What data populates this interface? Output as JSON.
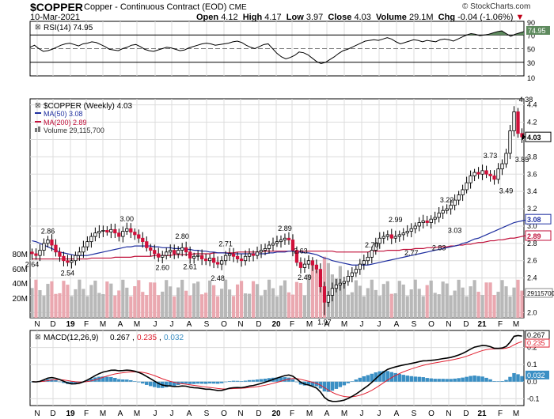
{
  "header": {
    "symbol": "$COPPER",
    "description": "Copper - Continuous Contract (EOD)",
    "exchange": "CME",
    "date": "10-Mar-2021",
    "open_label": "Open",
    "open": "4.12",
    "high_label": "High",
    "high": "4.17",
    "low_label": "Low",
    "low": "3.97",
    "close_label": "Close",
    "close": "4.03",
    "volume_label": "Volume",
    "volume": "29.1M",
    "chg_label": "Chg",
    "chg": "-0.04 (-1.06%)",
    "copyright": "© StockCharts.com"
  },
  "colors": {
    "up": "#ffffff",
    "down": "#d0103a",
    "rsi_fill": "#5e8a5e",
    "ma50": "#1f2fa0",
    "ma200": "#c0103a",
    "vol_up": "#b8b8b8",
    "vol_down": "#eaa8b0",
    "macd_hist": "#3a8fc4",
    "signal": "#e02030",
    "grid": "#dcdcdc"
  },
  "chart_data": [
    {
      "type": "line",
      "title": "RSI(14) 74.95",
      "legend": "RSI(14) 74.95",
      "ylim": [
        10,
        90
      ],
      "ticks": [
        "70",
        "50",
        "30"
      ],
      "last_value": "74.95",
      "values": [
        52,
        55,
        50,
        46,
        47,
        49,
        52,
        55,
        57,
        58,
        56,
        54,
        57,
        58,
        60,
        59,
        56,
        53,
        49,
        48,
        47,
        50,
        52,
        55,
        56,
        53,
        49,
        47,
        46,
        48,
        50,
        52,
        51,
        49,
        47,
        48,
        51,
        53,
        55,
        57,
        58,
        57,
        55,
        56,
        57,
        58,
        60,
        61,
        59,
        55,
        52,
        50,
        53,
        56,
        57,
        50,
        43,
        38,
        35,
        37,
        40,
        45,
        44,
        41,
        36,
        31,
        28,
        30,
        34,
        38,
        43,
        47,
        49,
        52,
        55,
        58,
        61,
        62,
        63,
        62,
        64,
        66,
        64,
        60,
        57,
        59,
        61,
        63,
        62,
        60,
        62,
        61,
        60,
        63,
        64,
        63,
        61,
        64,
        67,
        70,
        72,
        71,
        69,
        70,
        71,
        73,
        75,
        76,
        72,
        68,
        71,
        73,
        75
      ]
    },
    {
      "type": "candlestick",
      "title": "$COPPER (Weekly) 4.03",
      "legend": [
        "$COPPER (Weekly) 4.03",
        "MA(50) 3.08",
        "MA(200) 2.89",
        "Volume 29,115,700"
      ],
      "ylim": [
        1.94,
        4.47
      ],
      "y_ticks": [
        "4.4",
        "4.2",
        "4.0",
        "3.8",
        "3.6",
        "3.4",
        "3.2",
        "3.0",
        "2.8",
        "2.6",
        "2.4",
        "2.2",
        "2.0"
      ],
      "volume_ticks": [
        "80M",
        "60M",
        "40M",
        "20M"
      ],
      "last_labels": [
        "4.03",
        "3.08",
        "2.89",
        "29115700"
      ],
      "annotations": [
        {
          "text": "2.64",
          "week": 0,
          "value": 2.64,
          "pos": "below"
        },
        {
          "text": "2.86",
          "week": 4,
          "value": 2.86,
          "pos": "above"
        },
        {
          "text": "2.54",
          "week": 9,
          "value": 2.54,
          "pos": "below"
        },
        {
          "text": "3.00",
          "week": 24,
          "value": 3.0,
          "pos": "above"
        },
        {
          "text": "2.80",
          "week": 38,
          "value": 2.8,
          "pos": "above"
        },
        {
          "text": "2.60",
          "week": 33,
          "value": 2.6,
          "pos": "below"
        },
        {
          "text": "2.61",
          "week": 40,
          "value": 2.61,
          "pos": "below"
        },
        {
          "text": "2.71",
          "week": 49,
          "value": 2.71,
          "pos": "above"
        },
        {
          "text": "2.48",
          "week": 47,
          "value": 2.48,
          "pos": "below"
        },
        {
          "text": "2.89",
          "week": 64,
          "value": 2.89,
          "pos": "above"
        },
        {
          "text": "2.63",
          "week": 68,
          "value": 2.63,
          "pos": "above"
        },
        {
          "text": "2.49",
          "week": 69,
          "value": 2.49,
          "pos": "below"
        },
        {
          "text": "1.97",
          "week": 74,
          "value": 1.97,
          "pos": "below"
        },
        {
          "text": "2.70",
          "week": 86,
          "value": 2.7,
          "pos": "above"
        },
        {
          "text": "2.99",
          "week": 92,
          "value": 2.99,
          "pos": "above"
        },
        {
          "text": "2.77",
          "week": 96,
          "value": 2.77,
          "pos": "below"
        },
        {
          "text": "2.83",
          "week": 103,
          "value": 2.83,
          "pos": "below"
        },
        {
          "text": "3.22",
          "week": 105,
          "value": 3.22,
          "pos": "above"
        },
        {
          "text": "3.03",
          "week": 107,
          "value": 3.03,
          "pos": "below"
        },
        {
          "text": "3.73",
          "week": 116,
          "value": 3.73,
          "pos": "above"
        },
        {
          "text": "3.49",
          "week": 120,
          "value": 3.49,
          "pos": "below"
        },
        {
          "text": "3.85",
          "week": 124,
          "value": 3.85,
          "pos": "below"
        },
        {
          "text": "4.38",
          "week": 125,
          "value": 4.38,
          "pos": "above"
        }
      ],
      "closes": [
        2.68,
        2.66,
        2.72,
        2.8,
        2.84,
        2.78,
        2.7,
        2.65,
        2.6,
        2.58,
        2.6,
        2.66,
        2.7,
        2.76,
        2.82,
        2.88,
        2.92,
        2.94,
        2.95,
        2.93,
        2.96,
        2.92,
        2.88,
        2.94,
        2.97,
        2.93,
        2.9,
        2.86,
        2.82,
        2.75,
        2.72,
        2.68,
        2.64,
        2.66,
        2.7,
        2.72,
        2.68,
        2.72,
        2.75,
        2.7,
        2.63,
        2.65,
        2.66,
        2.62,
        2.6,
        2.63,
        2.58,
        2.56,
        2.6,
        2.66,
        2.68,
        2.65,
        2.62,
        2.6,
        2.65,
        2.68,
        2.66,
        2.7,
        2.72,
        2.74,
        2.78,
        2.8,
        2.82,
        2.84,
        2.86,
        2.84,
        2.72,
        2.58,
        2.52,
        2.56,
        2.6,
        2.55,
        2.5,
        2.3,
        2.12,
        2.2,
        2.28,
        2.32,
        2.34,
        2.36,
        2.42,
        2.46,
        2.5,
        2.56,
        2.6,
        2.64,
        2.72,
        2.8,
        2.86,
        2.88,
        2.9,
        2.86,
        2.88,
        2.9,
        2.92,
        2.94,
        2.97,
        3.0,
        3.04,
        3.06,
        3.04,
        3.08,
        3.1,
        3.15,
        3.18,
        3.2,
        3.24,
        3.3,
        3.36,
        3.42,
        3.5,
        3.58,
        3.62,
        3.6,
        3.64,
        3.6,
        3.58,
        3.54,
        3.66,
        3.72,
        3.84,
        4.1,
        4.32,
        4.07,
        4.03
      ],
      "ma50": [
        2.83,
        2.82,
        2.8,
        2.78,
        2.76,
        2.74,
        2.72,
        2.7,
        2.69,
        2.68,
        2.67,
        2.66,
        2.66,
        2.66,
        2.66,
        2.67,
        2.68,
        2.69,
        2.7,
        2.71,
        2.72,
        2.73,
        2.74,
        2.75,
        2.76,
        2.76,
        2.77,
        2.77,
        2.77,
        2.77,
        2.77,
        2.76,
        2.76,
        2.75,
        2.75,
        2.75,
        2.74,
        2.74,
        2.74,
        2.73,
        2.73,
        2.72,
        2.72,
        2.71,
        2.71,
        2.7,
        2.7,
        2.69,
        2.69,
        2.69,
        2.68,
        2.68,
        2.68,
        2.68,
        2.68,
        2.68,
        2.68,
        2.68,
        2.68,
        2.68,
        2.69,
        2.69,
        2.7,
        2.7,
        2.7,
        2.71,
        2.71,
        2.7,
        2.7,
        2.69,
        2.69,
        2.68,
        2.67,
        2.65,
        2.63,
        2.62,
        2.6,
        2.59,
        2.58,
        2.57,
        2.56,
        2.55,
        2.55,
        2.55,
        2.55,
        2.55,
        2.56,
        2.57,
        2.58,
        2.59,
        2.6,
        2.61,
        2.62,
        2.63,
        2.64,
        2.65,
        2.66,
        2.67,
        2.68,
        2.69,
        2.7,
        2.71,
        2.72,
        2.73,
        2.74,
        2.75,
        2.76,
        2.77,
        2.78,
        2.8,
        2.81,
        2.83,
        2.85,
        2.86,
        2.88,
        2.9,
        2.92,
        2.94,
        2.96,
        2.98,
        3.0,
        3.02,
        3.04,
        3.05,
        3.06,
        3.07,
        3.08
      ],
      "ma200": [
        2.62,
        2.62,
        2.62,
        2.62,
        2.62,
        2.62,
        2.62,
        2.62,
        2.62,
        2.62,
        2.62,
        2.62,
        2.62,
        2.62,
        2.62,
        2.63,
        2.63,
        2.63,
        2.63,
        2.63,
        2.63,
        2.64,
        2.64,
        2.64,
        2.64,
        2.64,
        2.65,
        2.65,
        2.65,
        2.65,
        2.65,
        2.66,
        2.66,
        2.66,
        2.66,
        2.66,
        2.67,
        2.67,
        2.67,
        2.67,
        2.67,
        2.68,
        2.68,
        2.68,
        2.68,
        2.68,
        2.69,
        2.69,
        2.69,
        2.69,
        2.69,
        2.69,
        2.7,
        2.7,
        2.7,
        2.7,
        2.7,
        2.7,
        2.7,
        2.71,
        2.71,
        2.71,
        2.71,
        2.71,
        2.71,
        2.71,
        2.71,
        2.71,
        2.71,
        2.71,
        2.71,
        2.71,
        2.71,
        2.71,
        2.71,
        2.71,
        2.71,
        2.7,
        2.7,
        2.7,
        2.7,
        2.7,
        2.7,
        2.7,
        2.7,
        2.7,
        2.71,
        2.71,
        2.71,
        2.71,
        2.72,
        2.72,
        2.72,
        2.72,
        2.73,
        2.73,
        2.73,
        2.74,
        2.74,
        2.74,
        2.75,
        2.75,
        2.75,
        2.76,
        2.76,
        2.76,
        2.77,
        2.77,
        2.78,
        2.78,
        2.79,
        2.79,
        2.8,
        2.81,
        2.81,
        2.82,
        2.83,
        2.83,
        2.84,
        2.84,
        2.85,
        2.86,
        2.86,
        2.87,
        2.88,
        2.89
      ]
    },
    {
      "type": "line",
      "title": "MACD(12,26,9) 0.267, 0.235, 0.032",
      "legend": [
        "MACD(12,26,9)",
        "0.267",
        ",",
        "0.235",
        ",",
        "0.032"
      ],
      "ylim": [
        -0.14,
        0.3
      ],
      "ticks": [
        "0.2",
        "0.1",
        "0.0",
        "-0.1"
      ],
      "last_labels": [
        "0.267",
        "0.235",
        "0.032"
      ],
      "x_labels": [
        "N",
        "D",
        "19",
        "F",
        "M",
        "A",
        "M",
        "J",
        "J",
        "A",
        "S",
        "O",
        "N",
        "D",
        "20",
        "F",
        "M",
        "A",
        "M",
        "J",
        "J",
        "A",
        "S",
        "O",
        "N",
        "D",
        "21",
        "F",
        "M"
      ]
    }
  ]
}
